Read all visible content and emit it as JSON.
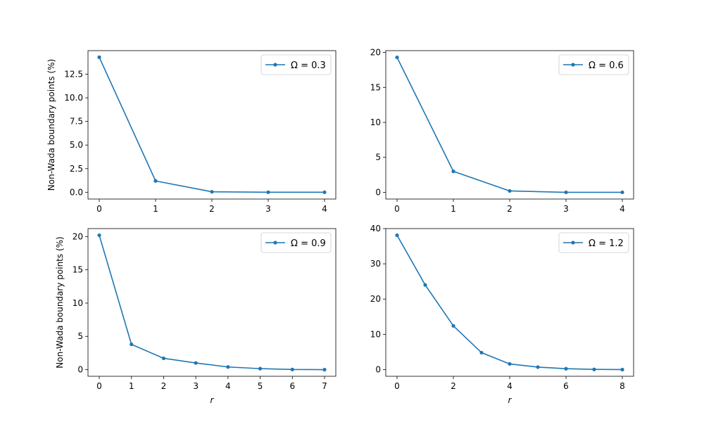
{
  "figure": {
    "background": "#ffffff",
    "series_color": "#1f77b4"
  },
  "chart_data": [
    {
      "type": "line",
      "xlabel": "",
      "ylabel": "Non-Wada boundary points (%)",
      "legend": "Ω = 0.3",
      "legend_position": "top-right",
      "grid": false,
      "x": [
        0,
        1,
        2,
        3,
        4
      ],
      "y": [
        14.3,
        1.2,
        0.05,
        0.0,
        0.0
      ],
      "xlim": [
        -0.2,
        4.2
      ],
      "ylim": [
        -0.72,
        15.0
      ],
      "xticks": [
        0,
        1,
        2,
        3,
        4
      ],
      "yticks": [
        0.0,
        2.5,
        5.0,
        7.5,
        10.0,
        12.5
      ],
      "xtick_labels": [
        "0",
        "1",
        "2",
        "3",
        "4"
      ],
      "ytick_labels": [
        "0.0",
        "2.5",
        "5.0",
        "7.5",
        "10.0",
        "12.5"
      ]
    },
    {
      "type": "line",
      "xlabel": "",
      "ylabel": "",
      "legend": "Ω = 0.6",
      "legend_position": "top-right",
      "grid": false,
      "x": [
        0,
        1,
        2,
        3,
        4
      ],
      "y": [
        19.3,
        3.0,
        0.2,
        0.0,
        0.0
      ],
      "xlim": [
        -0.2,
        4.2
      ],
      "ylim": [
        -0.96,
        20.26
      ],
      "xticks": [
        0,
        1,
        2,
        3,
        4
      ],
      "yticks": [
        0,
        5,
        10,
        15,
        20
      ],
      "xtick_labels": [
        "0",
        "1",
        "2",
        "3",
        "4"
      ],
      "ytick_labels": [
        "0",
        "5",
        "10",
        "15",
        "20"
      ]
    },
    {
      "type": "line",
      "xlabel": "r",
      "ylabel": "Non-Wada boundary points (%)",
      "legend": "Ω = 0.9",
      "legend_position": "top-right",
      "grid": false,
      "x": [
        0,
        1,
        2,
        3,
        4,
        5,
        6,
        7
      ],
      "y": [
        20.2,
        3.8,
        1.7,
        1.0,
        0.4,
        0.15,
        0.02,
        0.0
      ],
      "xlim": [
        -0.35,
        7.35
      ],
      "ylim": [
        -1.0,
        21.2
      ],
      "xticks": [
        0,
        1,
        2,
        3,
        4,
        5,
        6,
        7
      ],
      "yticks": [
        0,
        5,
        10,
        15,
        20
      ],
      "xtick_labels": [
        "0",
        "1",
        "2",
        "3",
        "4",
        "5",
        "6",
        "7"
      ],
      "ytick_labels": [
        "0",
        "5",
        "10",
        "15",
        "20"
      ]
    },
    {
      "type": "line",
      "xlabel": "r",
      "ylabel": "",
      "legend": "Ω = 1.2",
      "legend_position": "top-right",
      "grid": false,
      "x": [
        0,
        1,
        2,
        3,
        4,
        5,
        6,
        7,
        8
      ],
      "y": [
        38.1,
        24.0,
        12.4,
        4.8,
        1.6,
        0.7,
        0.25,
        0.05,
        0.0
      ],
      "xlim": [
        -0.4,
        8.4
      ],
      "ylim": [
        -1.9,
        40.0
      ],
      "xticks": [
        0,
        2,
        4,
        6,
        8
      ],
      "yticks": [
        0,
        10,
        20,
        30,
        40
      ],
      "xtick_labels": [
        "0",
        "2",
        "4",
        "6",
        "8"
      ],
      "ytick_labels": [
        "0",
        "10",
        "20",
        "30",
        "40"
      ]
    }
  ]
}
